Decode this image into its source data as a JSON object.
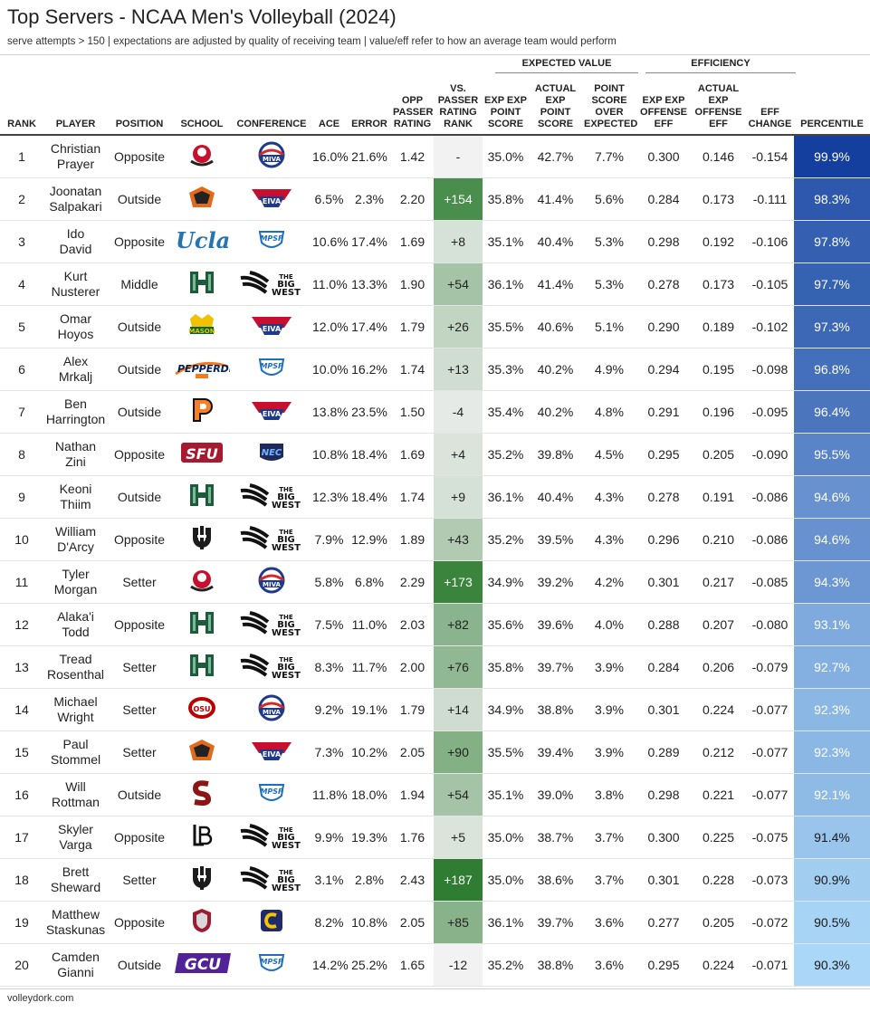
{
  "header": {
    "title": "Top Servers - NCAA Men's Volleyball (2024)",
    "subtitle": "serve attempts > 150 | expectations are adjusted by quality of receiving team | value/eff refer to how an average team would perform",
    "group_expected": "EXPECTED VALUE",
    "group_efficiency": "EFFICIENCY"
  },
  "columns": {
    "rank": "RANK",
    "player": "PLAYER",
    "position": "POSITION",
    "school": "SCHOOL",
    "conference": "CONFERENCE",
    "ace": "ACE",
    "error": "ERROR",
    "opp_passer_rating": "OPP PASSER RATING",
    "vs_passer_rating_rank": "VS. PASSER RATING RANK",
    "exp_point_score": "EXP EXP POINT SCORE",
    "actual_exp_point_score": "ACTUAL EXP POINT SCORE",
    "point_score_over_expected": "POINT SCORE OVER EXPECTED",
    "exp_offense_eff": "EXP EXP OFFENSE EFF",
    "actual_offense_eff": "ACTUAL EXP OFFENSE EFF",
    "eff_change": "EFF CHANGE",
    "percentile": "PERCENTILE"
  },
  "footer": {
    "source": "volleydork.com"
  },
  "colors": {
    "rank_bg_max": "#2e7d32",
    "rank_bg_min": "#f2f2f2",
    "percentile_max": "#143f9e",
    "percentile_min": "#aad6f7"
  },
  "chart_data": {
    "type": "table",
    "rows": [
      {
        "rank": "1",
        "player_first": "Christian",
        "player_last": "Prayer",
        "position": "Opposite",
        "school_logo": "lewis-flyers-logo",
        "conference_logo": "miva-logo",
        "ace": "16.0%",
        "error": "21.6%",
        "opp": "1.42",
        "vs_rank": "-",
        "exp_ps": "35.0%",
        "act_ps": "42.7%",
        "ps_over": "7.7%",
        "exp_eff": "0.300",
        "act_eff": "0.146",
        "eff_change": "-0.154",
        "percentile": "99.9%",
        "rank_num": null,
        "pct_num": 99.9
      },
      {
        "rank": "2",
        "player_first": "Joonatan",
        "player_last": "Salpakari",
        "position": "Outside",
        "school_logo": "nju-highlanders-logo",
        "conference_logo": "eiva-logo",
        "ace": "6.5%",
        "error": "2.3%",
        "opp": "2.20",
        "vs_rank": "+154",
        "exp_ps": "35.8%",
        "act_ps": "41.4%",
        "ps_over": "5.6%",
        "exp_eff": "0.284",
        "act_eff": "0.173",
        "eff_change": "-0.111",
        "percentile": "98.3%",
        "rank_num": 154,
        "pct_num": 98.3
      },
      {
        "rank": "3",
        "player_first": "Ido",
        "player_last": "David",
        "position": "Opposite",
        "school_logo": "ucla-logo",
        "conference_logo": "mpsf-logo",
        "ace": "10.6%",
        "error": "17.4%",
        "opp": "1.69",
        "vs_rank": "+8",
        "exp_ps": "35.1%",
        "act_ps": "40.4%",
        "ps_over": "5.3%",
        "exp_eff": "0.298",
        "act_eff": "0.192",
        "eff_change": "-0.106",
        "percentile": "97.8%",
        "rank_num": 8,
        "pct_num": 97.8
      },
      {
        "rank": "4",
        "player_first": "Kurt",
        "player_last": "Nusterer",
        "position": "Middle",
        "school_logo": "hawaii-logo",
        "conference_logo": "big-west-logo",
        "ace": "11.0%",
        "error": "13.3%",
        "opp": "1.90",
        "vs_rank": "+54",
        "exp_ps": "36.1%",
        "act_ps": "41.4%",
        "ps_over": "5.3%",
        "exp_eff": "0.278",
        "act_eff": "0.173",
        "eff_change": "-0.105",
        "percentile": "97.7%",
        "rank_num": 54,
        "pct_num": 97.7
      },
      {
        "rank": "5",
        "player_first": "Omar",
        "player_last": "Hoyos",
        "position": "Outside",
        "school_logo": "george-mason-logo",
        "conference_logo": "eiva-logo",
        "ace": "12.0%",
        "error": "17.4%",
        "opp": "1.79",
        "vs_rank": "+26",
        "exp_ps": "35.5%",
        "act_ps": "40.6%",
        "ps_over": "5.1%",
        "exp_eff": "0.290",
        "act_eff": "0.189",
        "eff_change": "-0.102",
        "percentile": "97.3%",
        "rank_num": 26,
        "pct_num": 97.3
      },
      {
        "rank": "6",
        "player_first": "Alex",
        "player_last": "Mrkalj",
        "position": "Outside",
        "school_logo": "pepperdine-logo",
        "conference_logo": "mpsf-logo",
        "ace": "10.0%",
        "error": "16.2%",
        "opp": "1.74",
        "vs_rank": "+13",
        "exp_ps": "35.3%",
        "act_ps": "40.2%",
        "ps_over": "4.9%",
        "exp_eff": "0.294",
        "act_eff": "0.195",
        "eff_change": "-0.098",
        "percentile": "96.8%",
        "rank_num": 13,
        "pct_num": 96.8
      },
      {
        "rank": "7",
        "player_first": "Ben",
        "player_last": "Harrington",
        "position": "Outside",
        "school_logo": "princeton-logo",
        "conference_logo": "eiva-logo",
        "ace": "13.8%",
        "error": "23.5%",
        "opp": "1.50",
        "vs_rank": "-4",
        "exp_ps": "35.4%",
        "act_ps": "40.2%",
        "ps_over": "4.8%",
        "exp_eff": "0.291",
        "act_eff": "0.196",
        "eff_change": "-0.095",
        "percentile": "96.4%",
        "rank_num": -4,
        "pct_num": 96.4
      },
      {
        "rank": "8",
        "player_first": "Nathan",
        "player_last": "Zini",
        "position": "Opposite",
        "school_logo": "sfu-logo",
        "conference_logo": "nec-logo",
        "ace": "10.8%",
        "error": "18.4%",
        "opp": "1.69",
        "vs_rank": "+4",
        "exp_ps": "35.2%",
        "act_ps": "39.8%",
        "ps_over": "4.5%",
        "exp_eff": "0.295",
        "act_eff": "0.205",
        "eff_change": "-0.090",
        "percentile": "95.5%",
        "rank_num": 4,
        "pct_num": 95.5
      },
      {
        "rank": "9",
        "player_first": "Keoni",
        "player_last": "Thiim",
        "position": "Outside",
        "school_logo": "hawaii-logo",
        "conference_logo": "big-west-logo",
        "ace": "12.3%",
        "error": "18.4%",
        "opp": "1.74",
        "vs_rank": "+9",
        "exp_ps": "36.1%",
        "act_ps": "40.4%",
        "ps_over": "4.3%",
        "exp_eff": "0.278",
        "act_eff": "0.191",
        "eff_change": "-0.086",
        "percentile": "94.6%",
        "rank_num": 9,
        "pct_num": 94.6
      },
      {
        "rank": "10",
        "player_first": "William",
        "player_last": "D'Arcy",
        "position": "Opposite",
        "school_logo": "uc-irvine-logo",
        "conference_logo": "big-west-logo",
        "ace": "7.9%",
        "error": "12.9%",
        "opp": "1.89",
        "vs_rank": "+43",
        "exp_ps": "35.2%",
        "act_ps": "39.5%",
        "ps_over": "4.3%",
        "exp_eff": "0.296",
        "act_eff": "0.210",
        "eff_change": "-0.086",
        "percentile": "94.6%",
        "rank_num": 43,
        "pct_num": 94.6
      },
      {
        "rank": "11",
        "player_first": "Tyler",
        "player_last": "Morgan",
        "position": "Setter",
        "school_logo": "lewis-flyers-logo",
        "conference_logo": "miva-logo",
        "ace": "5.8%",
        "error": "6.8%",
        "opp": "2.29",
        "vs_rank": "+173",
        "exp_ps": "34.9%",
        "act_ps": "39.2%",
        "ps_over": "4.2%",
        "exp_eff": "0.301",
        "act_eff": "0.217",
        "eff_change": "-0.085",
        "percentile": "94.3%",
        "rank_num": 173,
        "pct_num": 94.3
      },
      {
        "rank": "12",
        "player_first": "Alaka'i",
        "player_last": "Todd",
        "position": "Opposite",
        "school_logo": "hawaii-logo",
        "conference_logo": "big-west-logo",
        "ace": "7.5%",
        "error": "11.0%",
        "opp": "2.03",
        "vs_rank": "+82",
        "exp_ps": "35.6%",
        "act_ps": "39.6%",
        "ps_over": "4.0%",
        "exp_eff": "0.288",
        "act_eff": "0.207",
        "eff_change": "-0.080",
        "percentile": "93.1%",
        "rank_num": 82,
        "pct_num": 93.1
      },
      {
        "rank": "13",
        "player_first": "Tread",
        "player_last": "Rosenthal",
        "position": "Setter",
        "school_logo": "hawaii-logo",
        "conference_logo": "big-west-logo",
        "ace": "8.3%",
        "error": "11.7%",
        "opp": "2.00",
        "vs_rank": "+76",
        "exp_ps": "35.8%",
        "act_ps": "39.7%",
        "ps_over": "3.9%",
        "exp_eff": "0.284",
        "act_eff": "0.206",
        "eff_change": "-0.079",
        "percentile": "92.7%",
        "rank_num": 76,
        "pct_num": 92.7
      },
      {
        "rank": "14",
        "player_first": "Michael",
        "player_last": "Wright",
        "position": "Setter",
        "school_logo": "ohio-state-logo",
        "conference_logo": "miva-logo",
        "ace": "9.2%",
        "error": "19.1%",
        "opp": "1.79",
        "vs_rank": "+14",
        "exp_ps": "34.9%",
        "act_ps": "38.8%",
        "ps_over": "3.9%",
        "exp_eff": "0.301",
        "act_eff": "0.224",
        "eff_change": "-0.077",
        "percentile": "92.3%",
        "rank_num": 14,
        "pct_num": 92.3
      },
      {
        "rank": "15",
        "player_first": "Paul",
        "player_last": "Stommel",
        "position": "Setter",
        "school_logo": "nju-highlanders-logo",
        "conference_logo": "eiva-logo",
        "ace": "7.3%",
        "error": "10.2%",
        "opp": "2.05",
        "vs_rank": "+90",
        "exp_ps": "35.5%",
        "act_ps": "39.4%",
        "ps_over": "3.9%",
        "exp_eff": "0.289",
        "act_eff": "0.212",
        "eff_change": "-0.077",
        "percentile": "92.3%",
        "rank_num": 90,
        "pct_num": 92.3
      },
      {
        "rank": "16",
        "player_first": "Will",
        "player_last": "Rottman",
        "position": "Outside",
        "school_logo": "stanford-logo",
        "conference_logo": "mpsf-logo",
        "ace": "11.8%",
        "error": "18.0%",
        "opp": "1.94",
        "vs_rank": "+54",
        "exp_ps": "35.1%",
        "act_ps": "39.0%",
        "ps_over": "3.8%",
        "exp_eff": "0.298",
        "act_eff": "0.221",
        "eff_change": "-0.077",
        "percentile": "92.1%",
        "rank_num": 54,
        "pct_num": 92.1
      },
      {
        "rank": "17",
        "player_first": "Skyler",
        "player_last": "Varga",
        "position": "Opposite",
        "school_logo": "long-beach-logo",
        "conference_logo": "big-west-logo",
        "ace": "9.9%",
        "error": "19.3%",
        "opp": "1.76",
        "vs_rank": "+5",
        "exp_ps": "35.0%",
        "act_ps": "38.7%",
        "ps_over": "3.7%",
        "exp_eff": "0.300",
        "act_eff": "0.225",
        "eff_change": "-0.075",
        "percentile": "91.4%",
        "rank_num": 5,
        "pct_num": 91.4
      },
      {
        "rank": "18",
        "player_first": "Brett",
        "player_last": "Sheward",
        "position": "Setter",
        "school_logo": "uc-irvine-logo",
        "conference_logo": "big-west-logo",
        "ace": "3.1%",
        "error": "2.8%",
        "opp": "2.43",
        "vs_rank": "+187",
        "exp_ps": "35.0%",
        "act_ps": "38.6%",
        "ps_over": "3.7%",
        "exp_eff": "0.301",
        "act_eff": "0.228",
        "eff_change": "-0.073",
        "percentile": "90.9%",
        "rank_num": 187,
        "pct_num": 90.9
      },
      {
        "rank": "19",
        "player_first": "Matthew",
        "player_last": "Staskunas",
        "position": "Opposite",
        "school_logo": "quincy-logo",
        "conference_logo": "conference-carolinas-logo",
        "ace": "8.2%",
        "error": "10.8%",
        "opp": "2.05",
        "vs_rank": "+85",
        "exp_ps": "36.1%",
        "act_ps": "39.7%",
        "ps_over": "3.6%",
        "exp_eff": "0.277",
        "act_eff": "0.205",
        "eff_change": "-0.072",
        "percentile": "90.5%",
        "rank_num": 85,
        "pct_num": 90.5
      },
      {
        "rank": "20",
        "player_first": "Camden",
        "player_last": "Gianni",
        "position": "Outside",
        "school_logo": "gcu-logo",
        "conference_logo": "mpsf-logo",
        "ace": "14.2%",
        "error": "25.2%",
        "opp": "1.65",
        "vs_rank": "-12",
        "exp_ps": "35.2%",
        "act_ps": "38.8%",
        "ps_over": "3.6%",
        "exp_eff": "0.295",
        "act_eff": "0.224",
        "eff_change": "-0.071",
        "percentile": "90.3%",
        "rank_num": -12,
        "pct_num": 90.3
      }
    ]
  }
}
